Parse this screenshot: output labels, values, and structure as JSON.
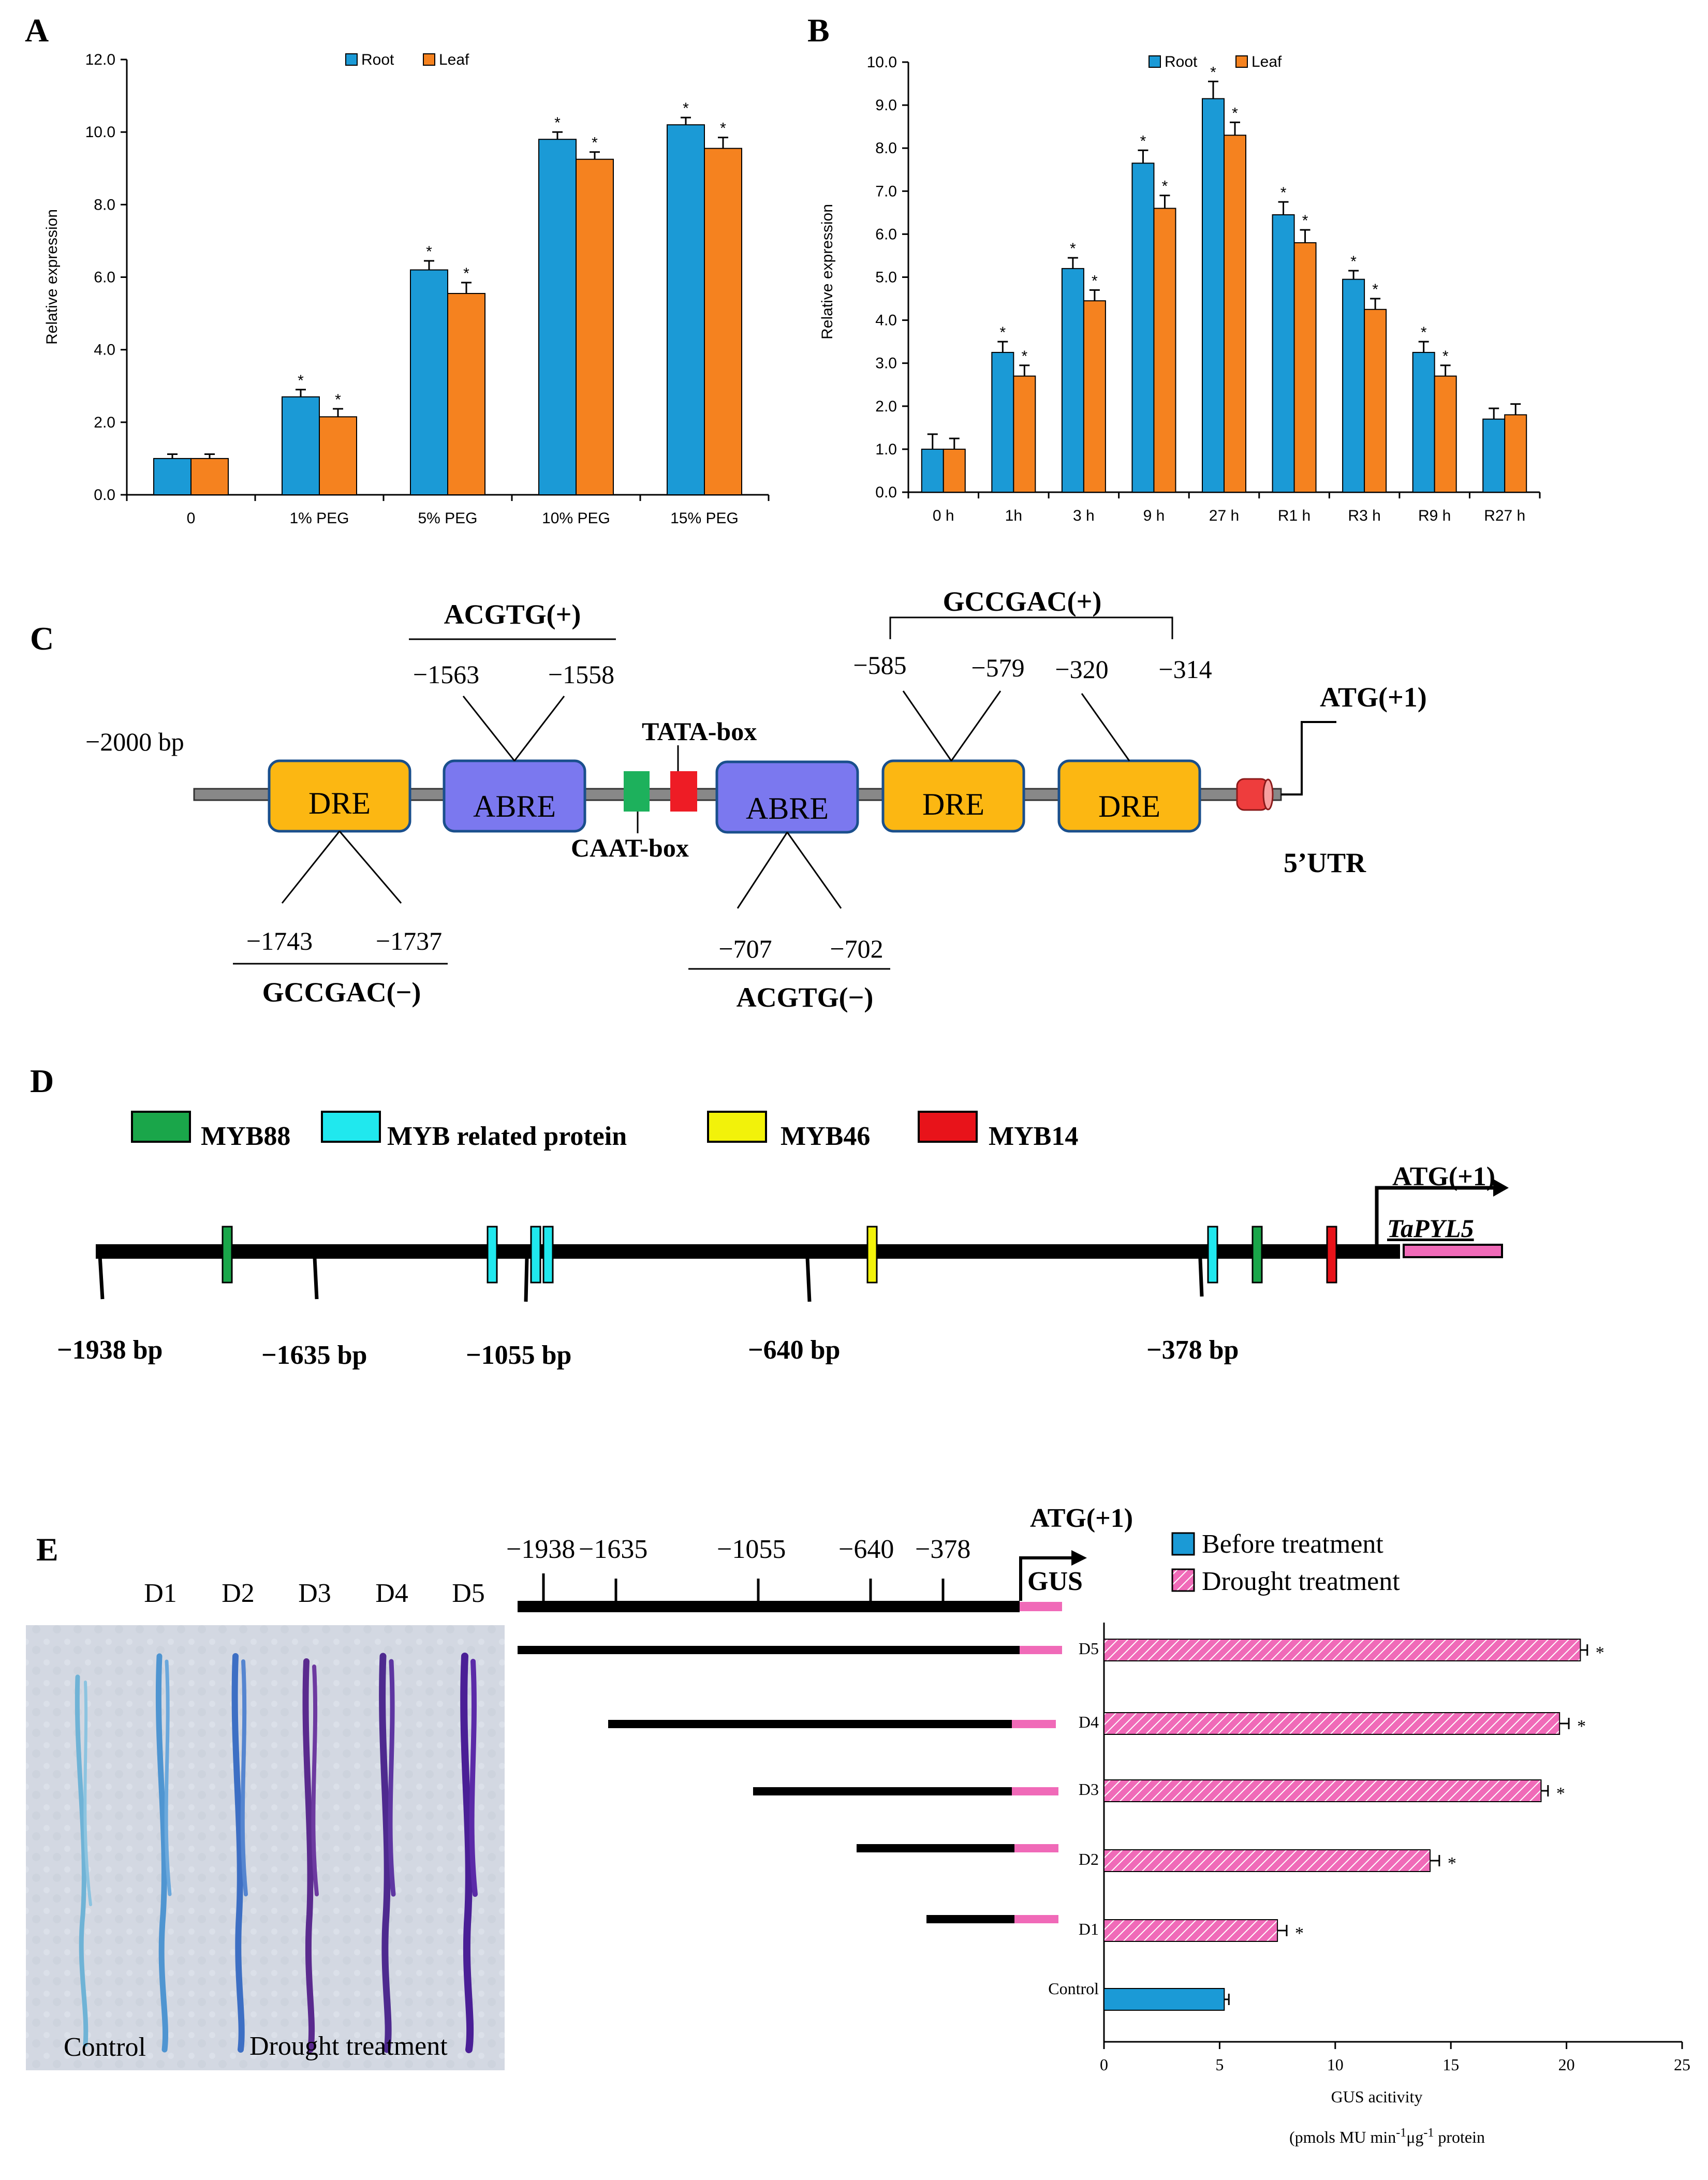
{
  "colors": {
    "root": "#1b9ad6",
    "leaf": "#f5821f",
    "myb88": "#1aa64a",
    "myb_related": "#20e8ee",
    "myb46": "#f2f20a",
    "myb14": "#e8131a",
    "dre": "#fcb712",
    "abre": "#7b78ef",
    "caat": "#1db15c",
    "tata": "#ee1c25",
    "gus": "#f06ab8",
    "drought": "#f06ab8",
    "before": "#1b9ad6"
  },
  "panel_labels": [
    "A",
    "B",
    "C",
    "D",
    "E"
  ],
  "chart_data": [
    {
      "type": "bar",
      "panel": "A",
      "categories": [
        "0",
        "1% PEG",
        "5% PEG",
        "10% PEG",
        "15% PEG"
      ],
      "series": [
        {
          "name": "Root",
          "values": [
            1.0,
            2.7,
            6.2,
            9.8,
            10.2
          ],
          "errors": [
            0.12,
            0.2,
            0.25,
            0.2,
            0.2
          ],
          "sig": [
            "",
            "*",
            "*",
            "*",
            "*"
          ]
        },
        {
          "name": "Leaf",
          "values": [
            1.0,
            2.15,
            5.55,
            9.25,
            9.55
          ],
          "errors": [
            0.12,
            0.22,
            0.3,
            0.2,
            0.3
          ],
          "sig": [
            "",
            "*",
            "*",
            "*",
            "*"
          ]
        }
      ],
      "ylabel": "Relative expression",
      "ylim": [
        0,
        12
      ],
      "yticks": [
        "0.0",
        "2.0",
        "4.0",
        "6.0",
        "8.0",
        "10.0",
        "12.0"
      ],
      "legend": [
        "Root",
        "Leaf"
      ]
    },
    {
      "type": "bar",
      "panel": "B",
      "categories": [
        "0 h",
        "1h",
        "3 h",
        "9 h",
        "27 h",
        "R1 h",
        "R3 h",
        "R9 h",
        "R27 h"
      ],
      "series": [
        {
          "name": "Root",
          "values": [
            1.0,
            3.25,
            5.2,
            7.65,
            9.15,
            6.45,
            4.95,
            3.25,
            1.7
          ],
          "errors": [
            0.35,
            0.25,
            0.25,
            0.3,
            0.4,
            0.3,
            0.2,
            0.25,
            0.25
          ],
          "sig": [
            "",
            "*",
            "*",
            "*",
            "*",
            "*",
            "*",
            "*",
            ""
          ]
        },
        {
          "name": "Leaf",
          "values": [
            1.0,
            2.7,
            4.45,
            6.6,
            8.3,
            5.8,
            4.25,
            2.7,
            1.8
          ],
          "errors": [
            0.25,
            0.25,
            0.25,
            0.3,
            0.3,
            0.3,
            0.25,
            0.25,
            0.25
          ],
          "sig": [
            "",
            "*",
            "*",
            "*",
            "*",
            "*",
            "*",
            "*",
            ""
          ]
        }
      ],
      "ylabel": "Relative expression",
      "ylim": [
        0,
        10
      ],
      "yticks": [
        "0.0",
        "1.0",
        "2.0",
        "3.0",
        "4.0",
        "5.0",
        "6.0",
        "7.0",
        "8.0",
        "9.0",
        "10.0"
      ],
      "legend": [
        "Root",
        "Leaf"
      ]
    },
    {
      "type": "bar",
      "panel": "E",
      "orientation": "horizontal",
      "categories": [
        "D5",
        "D4",
        "D3",
        "D2",
        "D1",
        "Control"
      ],
      "values": [
        20.6,
        19.7,
        18.9,
        14.1,
        7.5,
        5.2
      ],
      "errors": [
        0.3,
        0.4,
        0.3,
        0.4,
        0.4,
        0.2
      ],
      "series_of_bar": [
        "Drought treatment",
        "Drought treatment",
        "Drought treatment",
        "Drought treatment",
        "Drought treatment",
        "Before treatment"
      ],
      "sig": [
        "*",
        "*",
        "*",
        "*",
        "*",
        ""
      ],
      "xlim": [
        0,
        25
      ],
      "xticks": [
        "0",
        "5",
        "10",
        "15",
        "20",
        "25"
      ],
      "xlabel": "GUS acitivity",
      "xlabel_unit": "(pmols MU min",
      "xlabel_unit_sup1": "-1",
      "xlabel_unit_mid": "μg",
      "xlabel_unit_sup2": "-1",
      "xlabel_unit_end": " protein",
      "legend": [
        "Before treatment",
        "Drought treatment"
      ]
    }
  ],
  "panel_c": {
    "start_label": "−2000 bp",
    "elements": [
      {
        "name": "DRE",
        "kind": "dre"
      },
      {
        "name": "ABRE",
        "kind": "abre"
      },
      {
        "name": "ABRE",
        "kind": "abre"
      },
      {
        "name": "DRE",
        "kind": "dre"
      },
      {
        "name": "DRE",
        "kind": "dre"
      }
    ],
    "caat": "CAAT-box",
    "tata": "TATA-box",
    "atg": "ATG(+1)",
    "utr": "5’UTR",
    "top_groups": [
      {
        "title": "ACGTG(+)",
        "left": "−1563",
        "right": "−1558"
      },
      {
        "title": "GCCGAC(+)",
        "positions": [
          "−585",
          "−579",
          "−320",
          "−314"
        ]
      }
    ],
    "bottom_groups": [
      {
        "title": "GCCGAC(−)",
        "left": "−1743",
        "right": "−1737"
      },
      {
        "title": "ACGTG(−)",
        "left": "−707",
        "right": "−702"
      }
    ]
  },
  "panel_d": {
    "legend": [
      "MYB88",
      "MYB related protein",
      "MYB46",
      "MYB14"
    ],
    "atg": "ATG(+1)",
    "gene": "TaPYL5",
    "positions": [
      "−1938 bp",
      "−1635 bp",
      "−1055 bp",
      "−640 bp",
      "−378 bp"
    ]
  },
  "panel_e": {
    "lanes": [
      "D1",
      "D2",
      "D3",
      "D4",
      "D5"
    ],
    "photo_labels": [
      "Control",
      "Drought treatment"
    ],
    "positions": [
      "−1938",
      "−1635",
      "−1055",
      "−640",
      "−378"
    ],
    "atg": "ATG(+1)",
    "gus": "GUS"
  }
}
